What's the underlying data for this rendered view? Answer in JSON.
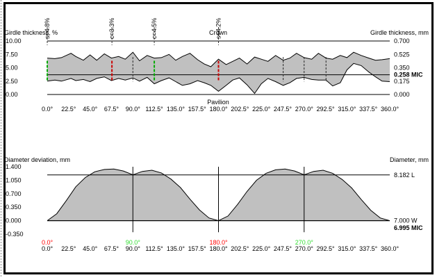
{
  "chart_data": [
    {
      "type": "area",
      "title": "",
      "left_axis_label": "Girdle thickness, %",
      "right_axis_label": "Girdle thickness, mm",
      "center_label": "Crown",
      "bottom_center_label": "Pavilion",
      "left_ticks": [
        "10.00",
        "7.50",
        "5.00",
        "2.50",
        "0.00"
      ],
      "left_range": [
        0,
        10
      ],
      "right_ticks": [
        "0.700",
        "0.525",
        "0.350",
        "0.175",
        "0.000"
      ],
      "right_range": [
        0,
        0.7
      ],
      "right_marker": {
        "label": "0.258 MIC",
        "value": 0.258
      },
      "x_ticks": [
        "0.0°",
        "22.5°",
        "45.0°",
        "67.5°",
        "90.0°",
        "112.5°",
        "135.0°",
        "157.5°",
        "180.0°",
        "202.5°",
        "225.0°",
        "247.5°",
        "270.0°",
        "292.5°",
        "315.0°",
        "337.5°",
        "360.0°"
      ],
      "x_range": [
        0,
        360
      ],
      "vertical_markers": [
        {
          "x": 0,
          "label": "s=4.8%",
          "color": "#00aa00"
        },
        {
          "x": 68,
          "label": "c=3.3%",
          "color": "#cc0000"
        },
        {
          "x": 112.5,
          "label": "c=4.5%",
          "color": "#00aa00"
        },
        {
          "x": 180,
          "label": "s=4.2%",
          "color": "#cc0000"
        }
      ],
      "plain_verticals": [
        90,
        248,
        270,
        293
      ],
      "upper_boundary": {
        "x": [
          0,
          8,
          15,
          25,
          30,
          38,
          45,
          52,
          60,
          67.5,
          75,
          82,
          90,
          97,
          105,
          112.5,
          120,
          128,
          135,
          142,
          150,
          158,
          165,
          172,
          180,
          188,
          195,
          202,
          210,
          218,
          225,
          232,
          240,
          248,
          255,
          262,
          270,
          278,
          285,
          293,
          300,
          308,
          315,
          322,
          330,
          338,
          345,
          352,
          360
        ],
        "y": [
          6.8,
          6.7,
          6.9,
          7.7,
          7.1,
          6.4,
          7.4,
          6.4,
          7.6,
          6.8,
          7.1,
          6.6,
          7.9,
          6.3,
          7.3,
          6.8,
          6.9,
          7.5,
          6.4,
          7.1,
          7.7,
          6.5,
          5.7,
          5.2,
          6.6,
          5.6,
          6.2,
          6.8,
          5.7,
          7.0,
          6.6,
          6.2,
          7.3,
          6.4,
          6.8,
          7.7,
          6.9,
          6.6,
          7.7,
          6.8,
          6.6,
          7.3,
          6.9,
          7.9,
          7.3,
          6.8,
          6.4,
          6.5,
          6.7
        ]
      },
      "lower_boundary": {
        "x": [
          0,
          8,
          15,
          25,
          30,
          38,
          45,
          52,
          60,
          67.5,
          75,
          82,
          90,
          97,
          105,
          112.5,
          120,
          128,
          135,
          142,
          150,
          158,
          165,
          172,
          180,
          188,
          195,
          202,
          210,
          218,
          225,
          232,
          240,
          248,
          255,
          262,
          270,
          278,
          285,
          293,
          300,
          308,
          315,
          322,
          330,
          338,
          345,
          352,
          360
        ],
        "y": [
          2.5,
          2.7,
          2.5,
          3.0,
          2.6,
          2.8,
          2.4,
          3.0,
          3.3,
          2.6,
          3.0,
          2.7,
          3.1,
          2.5,
          3.2,
          2.0,
          2.6,
          3.1,
          2.4,
          1.7,
          2.0,
          2.6,
          2.2,
          1.7,
          0.6,
          1.7,
          2.7,
          3.1,
          1.8,
          0.2,
          2.0,
          3.0,
          2.4,
          1.7,
          2.2,
          3.0,
          3.2,
          2.8,
          2.7,
          2.7,
          1.6,
          2.2,
          4.6,
          5.8,
          5.4,
          4.2,
          3.3,
          2.5,
          2.4
        ]
      }
    },
    {
      "type": "area",
      "title": "",
      "left_axis_label": "Diameter deviation, mm",
      "right_axis_label": "Diameter, mm",
      "left_ticks": [
        "1.400",
        "1.050",
        "0.700",
        "0.350",
        "0.000",
        "-0.350"
      ],
      "left_range": [
        -0.35,
        1.4
      ],
      "right_labels": [
        {
          "label": "8.182 L",
          "value": 1.187
        },
        {
          "label": "7.000 W",
          "value": 0.005
        }
      ],
      "right_bold_label": "6.995 MIC",
      "reference_line": 1.187,
      "x_ticks": [
        "0.0°",
        "22.5°",
        "45.0°",
        "67.5°",
        "90.0°",
        "112.5°",
        "135.0°",
        "157.5°",
        "180.0°",
        "202.5°",
        "225.0°",
        "247.5°",
        "270.0°",
        "292.5°",
        "315.0°",
        "337.5°",
        "360.0°"
      ],
      "x_range": [
        0,
        360
      ],
      "colored_x_labels": [
        {
          "x": 0,
          "label": "0.0°",
          "color": "#ff0000"
        },
        {
          "x": 90,
          "label": "90.0°",
          "color": "#33dd33"
        },
        {
          "x": 180,
          "label": "180.0°",
          "color": "#ff0000"
        },
        {
          "x": 270,
          "label": "270.0°",
          "color": "#33dd33"
        }
      ],
      "vertical_lines": [
        90,
        180,
        270
      ],
      "series": [
        {
          "x": [
            0,
            10,
            20,
            30,
            40,
            50,
            60,
            70,
            80,
            90,
            100,
            110,
            120,
            130,
            140,
            150,
            160,
            170,
            180,
            190,
            200,
            210,
            220,
            230,
            240,
            250,
            260,
            270,
            280,
            290,
            300,
            310,
            320,
            330,
            340,
            350,
            360
          ],
          "y": [
            0.0,
            0.18,
            0.52,
            0.88,
            1.12,
            1.27,
            1.33,
            1.34,
            1.29,
            1.19,
            1.28,
            1.31,
            1.24,
            1.08,
            0.86,
            0.56,
            0.28,
            0.07,
            0.0,
            0.12,
            0.42,
            0.76,
            1.05,
            1.23,
            1.32,
            1.34,
            1.29,
            1.19,
            1.28,
            1.31,
            1.23,
            1.07,
            0.85,
            0.55,
            0.27,
            0.07,
            0.0
          ]
        }
      ]
    }
  ]
}
